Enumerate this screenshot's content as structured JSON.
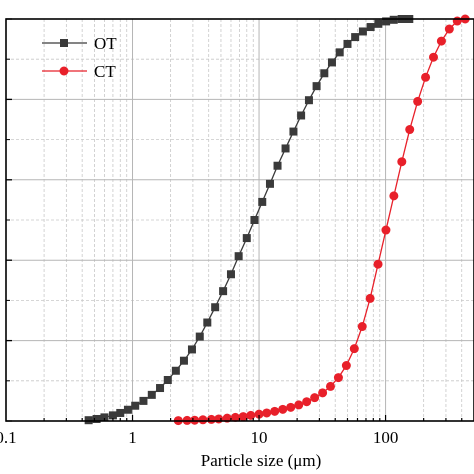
{
  "chart_data": {
    "type": "line",
    "title": "",
    "xlabel": "Particle size (μm)",
    "ylabel": "",
    "xscale": "log",
    "xlim": [
      0.1,
      500
    ],
    "ylim": [
      0,
      100
    ],
    "x_tick_labels": [
      {
        "value": 0.1,
        "label": "0.1"
      },
      {
        "value": 1,
        "label": "1"
      },
      {
        "value": 10,
        "label": "10"
      },
      {
        "value": 100,
        "label": "100"
      }
    ],
    "y_major_ticks": [
      0,
      20,
      40,
      60,
      80,
      100
    ],
    "grid": true,
    "legend": "top-left",
    "series": [
      {
        "name": "OT",
        "color": "#3a3a3a",
        "marker": "square",
        "x": [
          0.45,
          0.52,
          0.6,
          0.7,
          0.8,
          0.92,
          1.05,
          1.22,
          1.42,
          1.65,
          1.9,
          2.2,
          2.55,
          2.95,
          3.4,
          3.9,
          4.5,
          5.2,
          6.0,
          6.9,
          8.0,
          9.2,
          10.6,
          12.2,
          14.0,
          16.2,
          18.7,
          21.5,
          24.8,
          28.5,
          32.8,
          37.7,
          43.4,
          50.0,
          57.5,
          66.2,
          76.2,
          87.7,
          101,
          116,
          134,
          154
        ],
        "y": [
          0.2,
          0.5,
          0.9,
          1.4,
          2.0,
          2.8,
          3.8,
          5.0,
          6.5,
          8.2,
          10.2,
          12.5,
          15.0,
          17.8,
          21.0,
          24.5,
          28.3,
          32.3,
          36.5,
          41.0,
          45.5,
          50.0,
          54.5,
          59.0,
          63.5,
          67.8,
          72.0,
          76.0,
          79.8,
          83.3,
          86.5,
          89.2,
          91.7,
          93.8,
          95.5,
          96.9,
          98.0,
          98.8,
          99.4,
          99.8,
          100,
          100
        ]
      },
      {
        "name": "CT",
        "color": "#e8202a",
        "marker": "circle",
        "x": [
          2.3,
          2.7,
          3.1,
          3.6,
          4.2,
          4.8,
          5.6,
          6.5,
          7.5,
          8.6,
          10.0,
          11.5,
          13.3,
          15.4,
          17.8,
          20.6,
          23.8,
          27.5,
          31.8,
          36.7,
          42.4,
          49.0,
          56.6,
          65.4,
          75.5,
          87.2,
          100.7,
          116.3,
          134.4,
          155.2,
          179.3,
          207.1,
          239.2,
          276.3,
          319.2,
          368.7,
          425.9
        ],
        "y": [
          0.1,
          0.15,
          0.2,
          0.3,
          0.4,
          0.5,
          0.7,
          0.9,
          1.1,
          1.4,
          1.7,
          2.0,
          2.4,
          2.9,
          3.4,
          4.0,
          4.8,
          5.8,
          7.0,
          8.6,
          10.8,
          13.8,
          18.0,
          23.5,
          30.5,
          39.0,
          47.5,
          56.0,
          64.5,
          72.5,
          79.5,
          85.5,
          90.5,
          94.5,
          97.5,
          99.5,
          100
        ]
      }
    ]
  }
}
